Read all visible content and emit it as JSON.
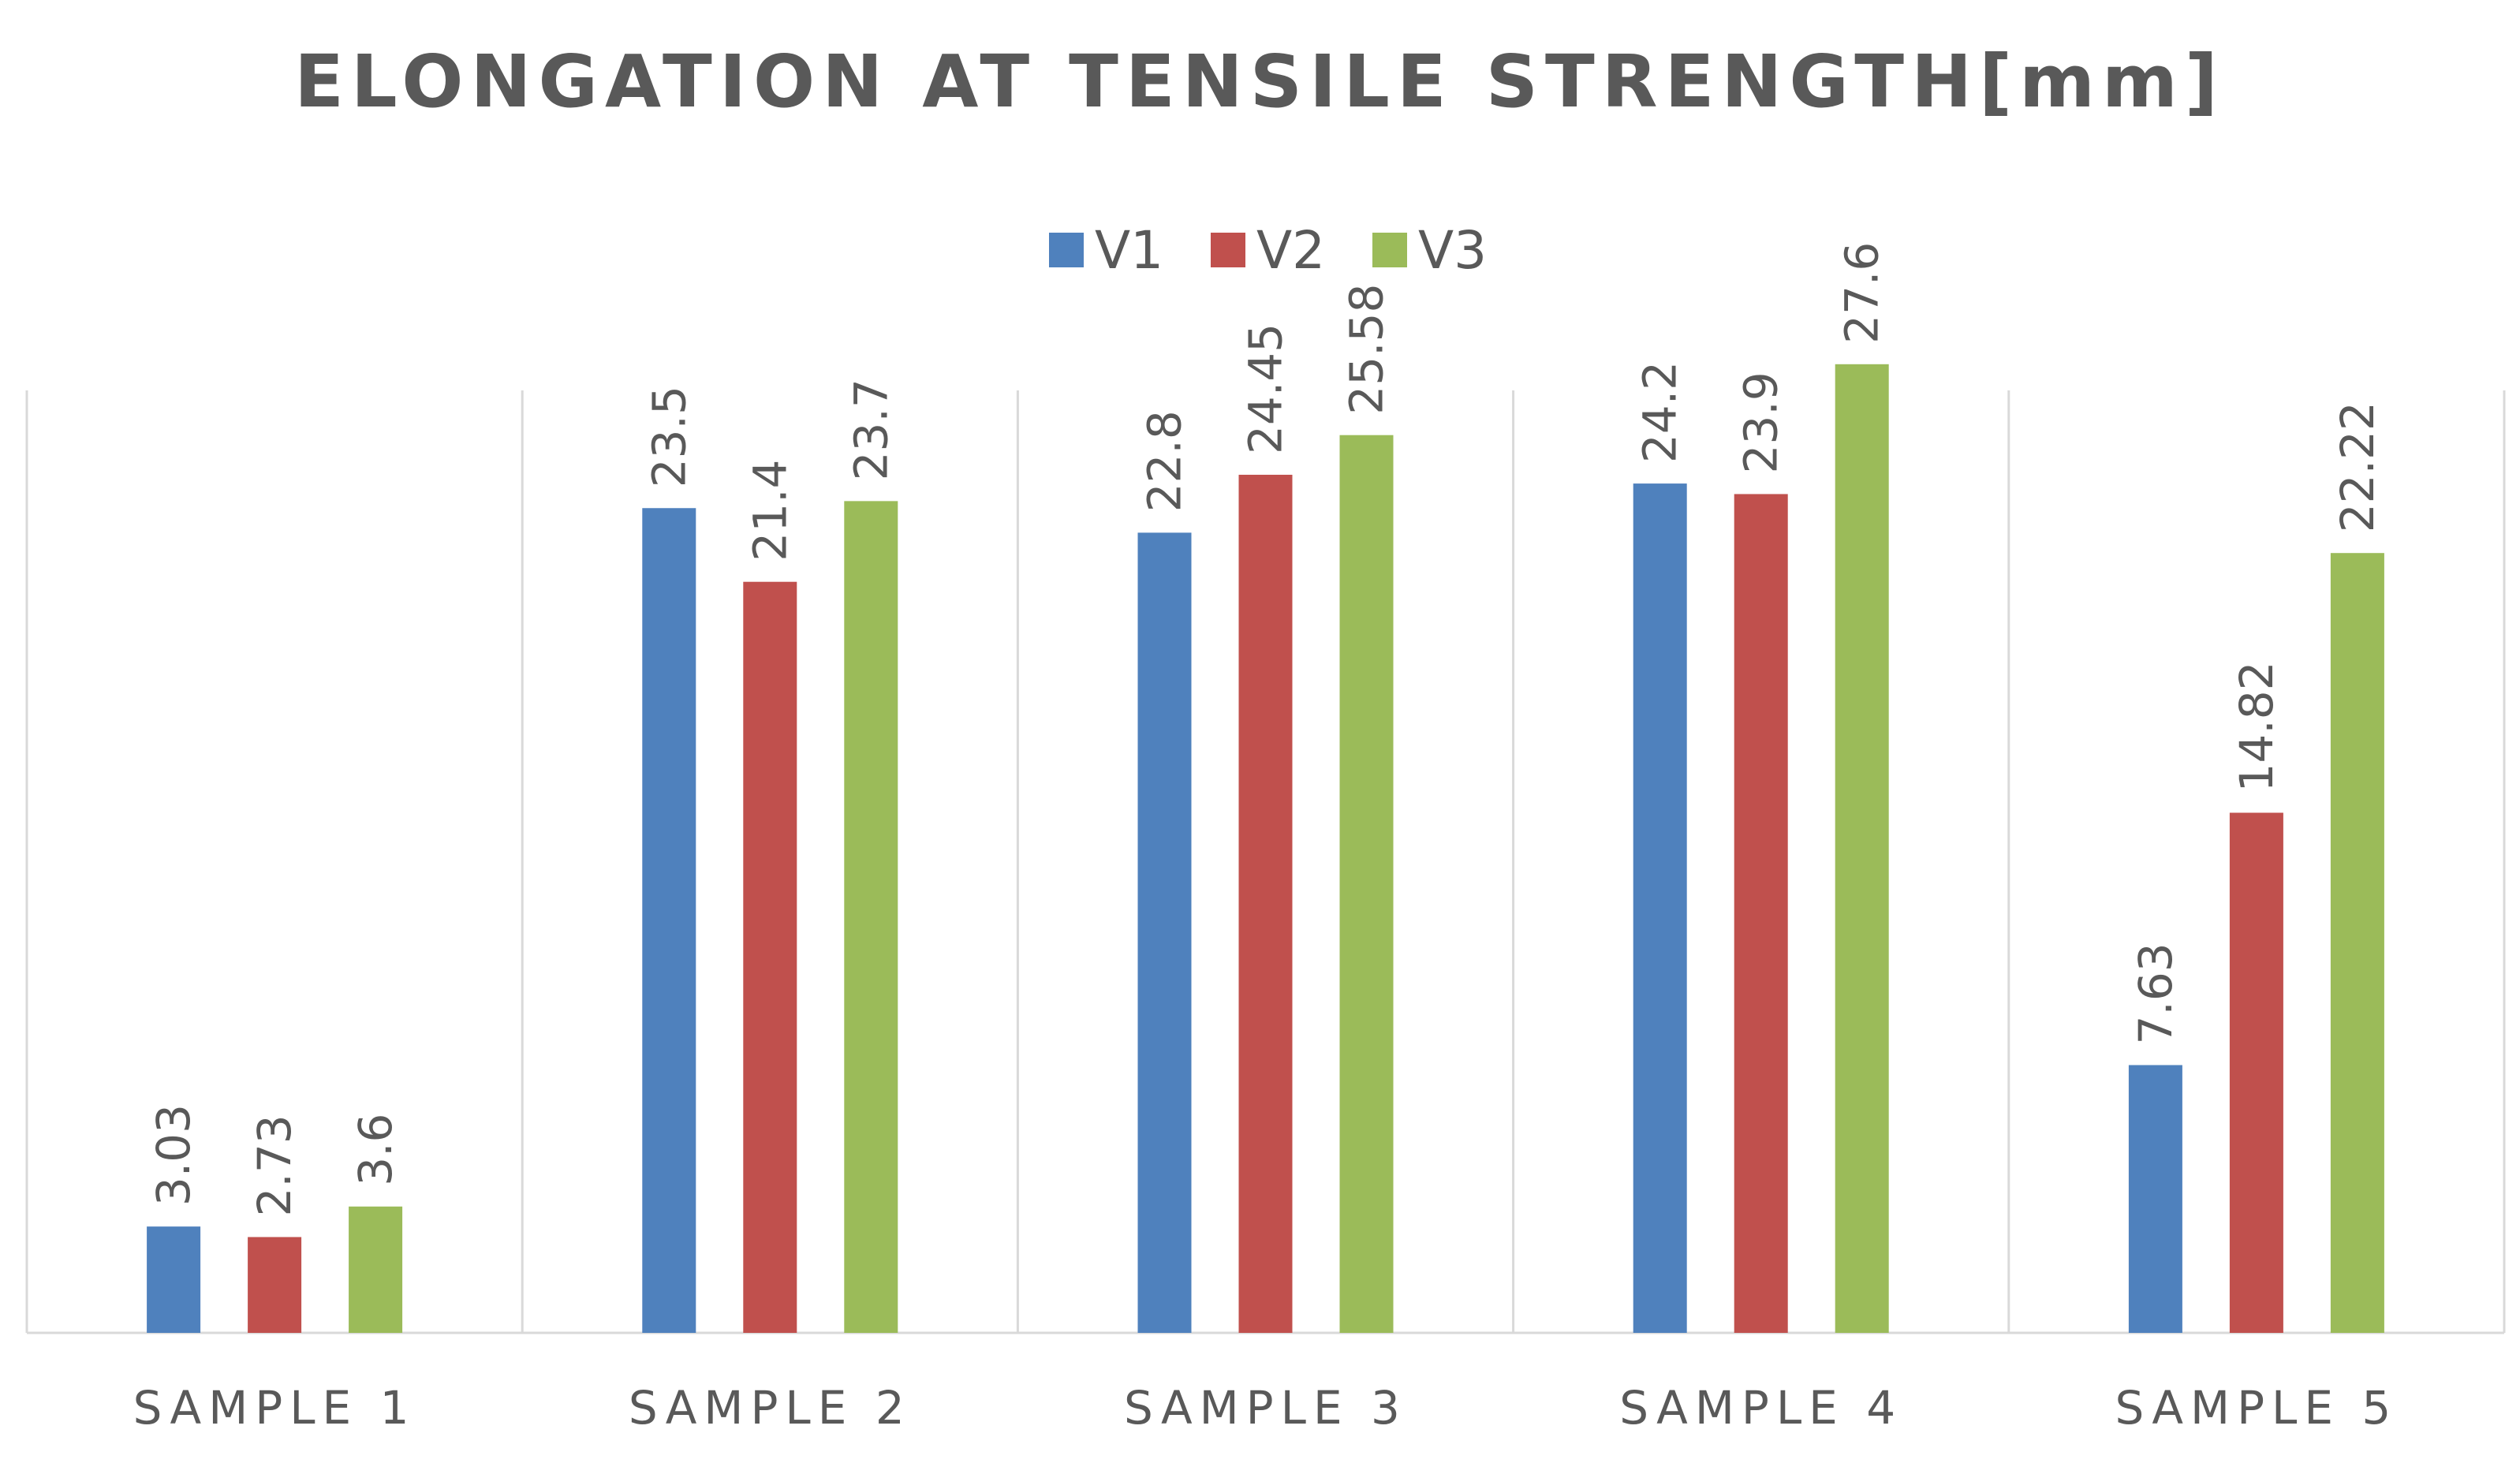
{
  "chart_data": {
    "type": "bar",
    "title": "ELONGATION AT TENSILE STRENGTH[mm]",
    "categories": [
      "SAMPLE 1",
      "SAMPLE 2",
      "SAMPLE 3",
      "SAMPLE 4",
      "SAMPLE 5"
    ],
    "series": [
      {
        "name": "V1",
        "color": "#4f81bd",
        "values": [
          3.03,
          23.5,
          22.8,
          24.2,
          7.63
        ],
        "labels": [
          "3.03",
          "23.5",
          "22.8",
          "24.2",
          "7.63"
        ]
      },
      {
        "name": "V2",
        "color": "#c0504d",
        "values": [
          2.73,
          21.4,
          24.45,
          23.9,
          14.82
        ],
        "labels": [
          "2.73",
          "21.4",
          "24.45",
          "23.9",
          "14.82"
        ]
      },
      {
        "name": "V3",
        "color": "#9bbb59",
        "values": [
          3.6,
          23.7,
          25.58,
          27.6,
          22.22
        ],
        "labels": [
          "3.6",
          "23.7",
          "25.58",
          "27.6",
          "22.22"
        ]
      }
    ],
    "xlabel": "",
    "ylabel": "",
    "ylim": [
      0,
      30
    ],
    "legend_position": "top-center",
    "grid": "vertical category separators"
  }
}
